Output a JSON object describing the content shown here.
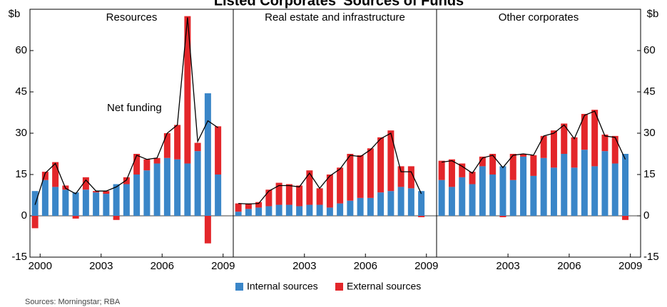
{
  "title": "Listed Corporates' Sources of Funds",
  "yunit": "$b",
  "legend": [
    "Internal sources",
    "External sources"
  ],
  "source": "Sources: Morningstar; RBA",
  "chart_data": [
    {
      "type": "bar",
      "title": "Resources",
      "annotation": "Net funding",
      "x": [
        1999.75,
        2000.25,
        2000.75,
        2001.25,
        2001.75,
        2002.25,
        2002.75,
        2003.25,
        2003.75,
        2004.25,
        2004.75,
        2005.25,
        2005.75,
        2006.25,
        2006.75,
        2007.25,
        2007.75,
        2008.25,
        2008.75
      ],
      "xlim": [
        1999.5,
        2009.5
      ],
      "xticks": [
        2000,
        2003,
        2006,
        2009
      ],
      "ylim": [
        -15,
        75
      ],
      "yticks": [
        -15,
        0,
        15,
        30,
        45,
        60
      ],
      "series": [
        {
          "color": "#3a86c8",
          "values": [
            9,
            13,
            10.5,
            9.5,
            8.5,
            9.5,
            8.5,
            8,
            11.5,
            11.5,
            15,
            16.5,
            19,
            21,
            20.5,
            19,
            23.5,
            44.5,
            15
          ]
        },
        {
          "color": "#e3262a",
          "values": [
            -4.5,
            3,
            9,
            1.5,
            -1,
            4.5,
            0.5,
            1,
            -1.5,
            2.5,
            7.5,
            4,
            2,
            9,
            12.5,
            53.5,
            3,
            -10,
            17.5
          ]
        },
        {
          "type": "line",
          "color": "#000000",
          "values": [
            4,
            15.5,
            19,
            10,
            8,
            13,
            9,
            9,
            10.5,
            13,
            22,
            20.5,
            21,
            30,
            33,
            72,
            27,
            34.5,
            32
          ]
        }
      ]
    },
    {
      "type": "bar",
      "title": "Real estate and infrastructure",
      "x": [
        1999.75,
        2000.25,
        2000.75,
        2001.25,
        2001.75,
        2002.25,
        2002.75,
        2003.25,
        2003.75,
        2004.25,
        2004.75,
        2005.25,
        2005.75,
        2006.25,
        2006.75,
        2007.25,
        2007.75,
        2008.25,
        2008.75
      ],
      "xlim": [
        1999.5,
        2009.5
      ],
      "xticks": [
        2003,
        2006,
        2009
      ],
      "ylim": [
        -15,
        75
      ],
      "yticks": [
        -15,
        0,
        15,
        30,
        45,
        60
      ],
      "series": [
        {
          "color": "#3a86c8",
          "values": [
            1.5,
            2.5,
            3,
            3.5,
            4,
            4,
            3.5,
            4,
            4,
            3,
            4.5,
            5.5,
            6.5,
            6.5,
            8.5,
            9,
            10.5,
            10,
            9
          ]
        },
        {
          "color": "#e3262a",
          "values": [
            3,
            2,
            2,
            6,
            8,
            7.5,
            7.5,
            12.5,
            6,
            12,
            13,
            17,
            15.5,
            18,
            20,
            22,
            7.5,
            8,
            -0.5
          ]
        },
        {
          "type": "line",
          "color": "#000000",
          "values": [
            4.5,
            4.3,
            4.5,
            9,
            11,
            11,
            10.5,
            15.5,
            10,
            14.5,
            17,
            22,
            21.5,
            24,
            28,
            30,
            16,
            16,
            8
          ]
        }
      ]
    },
    {
      "type": "bar",
      "title": "Other corporates",
      "x": [
        1999.75,
        2000.25,
        2000.75,
        2001.25,
        2001.75,
        2002.25,
        2002.75,
        2003.25,
        2003.75,
        2004.25,
        2004.75,
        2005.25,
        2005.75,
        2006.25,
        2006.75,
        2007.25,
        2007.75,
        2008.25,
        2008.75
      ],
      "xlim": [
        1999.5,
        2009.5
      ],
      "xticks": [
        2003,
        2006,
        2009
      ],
      "ylim": [
        -15,
        75
      ],
      "yticks": [
        -15,
        0,
        15,
        30,
        45,
        60
      ],
      "series": [
        {
          "color": "#3a86c8",
          "values": [
            13,
            10.5,
            14,
            11.5,
            18,
            15,
            18,
            13,
            21.5,
            14.5,
            21,
            17.5,
            22.5,
            17.5,
            24,
            18,
            23.5,
            19,
            22.5
          ]
        },
        {
          "color": "#e3262a",
          "values": [
            7,
            10,
            5,
            4.5,
            3.5,
            7.5,
            -0.5,
            9.5,
            1,
            7.5,
            8,
            13.5,
            11,
            11,
            13,
            20.5,
            6,
            10,
            -1.5
          ]
        },
        {
          "type": "line",
          "color": "#000000",
          "values": [
            19.5,
            20,
            18,
            15.5,
            21,
            22,
            17.5,
            22,
            22.5,
            22,
            29,
            30,
            33,
            28,
            36.5,
            38,
            29,
            28.5,
            20.5
          ]
        }
      ]
    }
  ]
}
